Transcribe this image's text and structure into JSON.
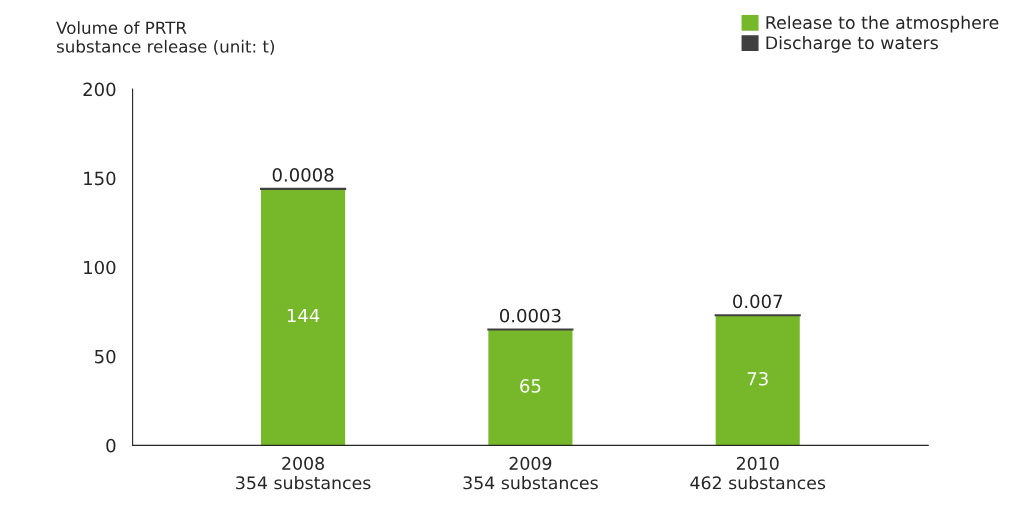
{
  "chart_data": {
    "type": "bar",
    "ylabel": "Volume of PRTR\nsubstance release (unit: t)",
    "categories": [
      "2008\n354 substances",
      "2009\n354 substances",
      "2010\n462 substances"
    ],
    "stacked": true,
    "data_labels": true,
    "series": [
      {
        "name": "Release to the atmosphere",
        "color": "#76b82a",
        "values": [
          144,
          65,
          73
        ]
      },
      {
        "name": "Discharge to waters",
        "color": "#404040",
        "values": [
          0.0008,
          0.0003,
          0.007
        ]
      }
    ],
    "ylim": [
      0,
      200
    ],
    "yticks": [
      0,
      50,
      100,
      150,
      200
    ],
    "grid": false,
    "legend": "top right"
  }
}
